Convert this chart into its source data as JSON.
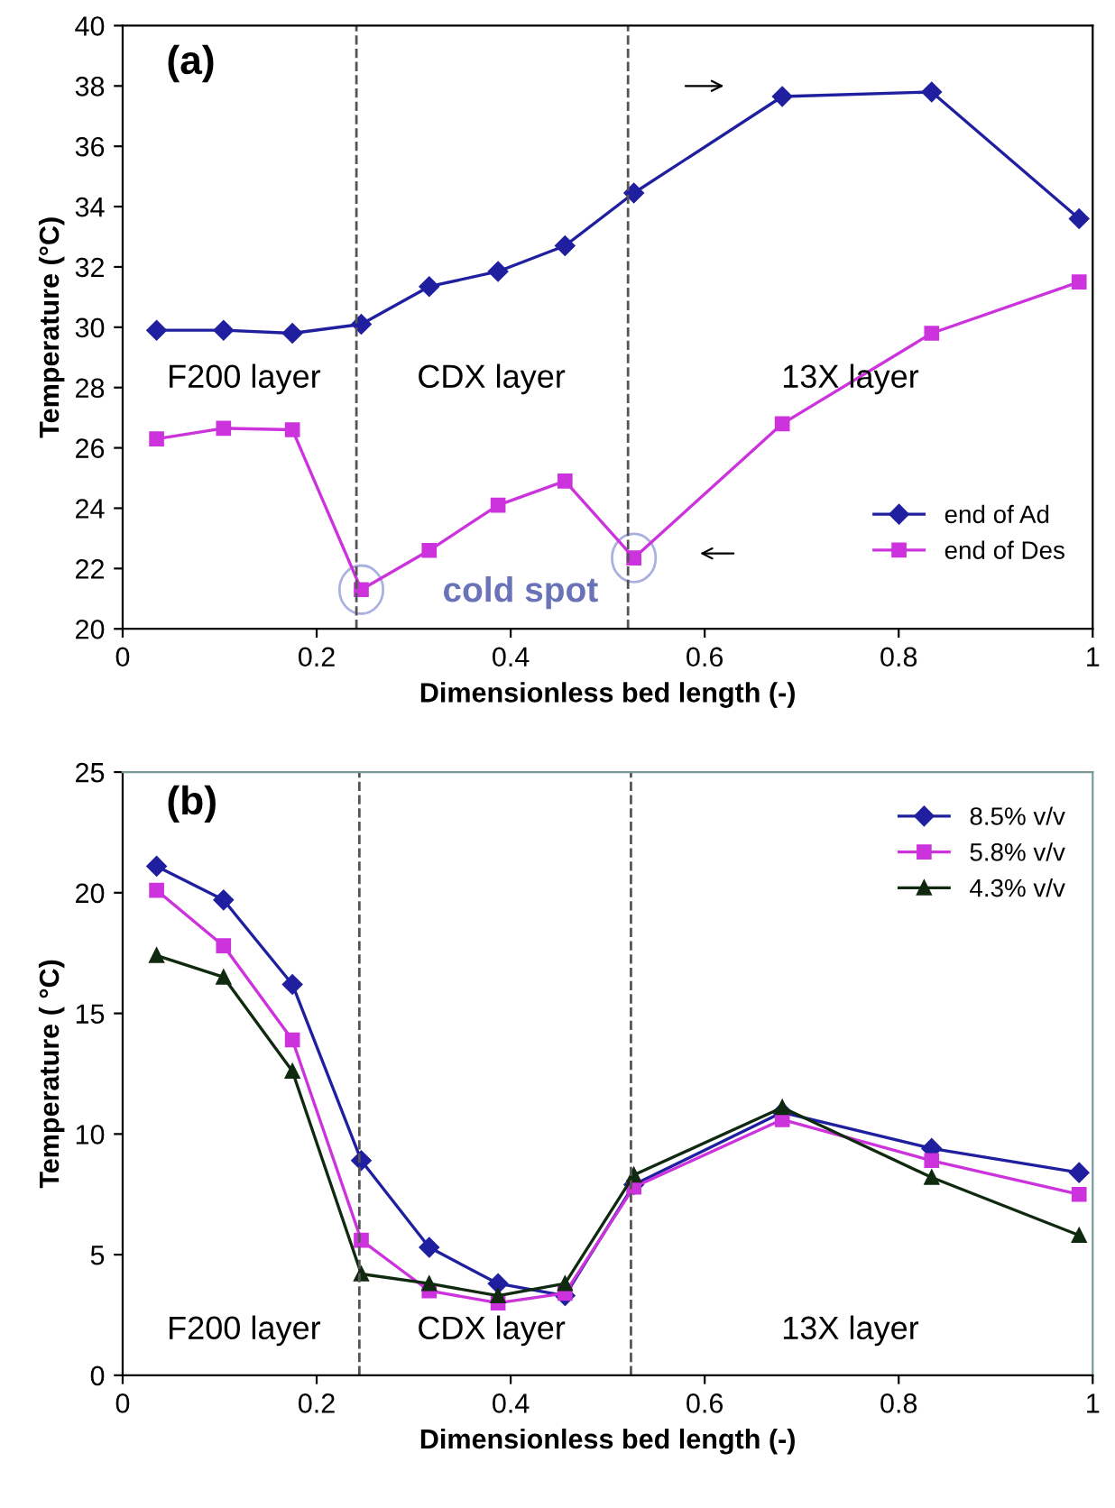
{
  "chart_data": [
    {
      "type": "line",
      "xlabel": "Dimensionless bed length (-)",
      "ylabel": "Temperature (°C)",
      "x": [
        0.035,
        0.104,
        0.175,
        0.246,
        0.316,
        0.387,
        0.456,
        0.527,
        0.68,
        0.834,
        0.986
      ],
      "series": [
        {
          "name": "end of Ad",
          "color": "#1f1f9f",
          "marker": "diamond",
          "values": [
            29.9,
            29.9,
            29.8,
            30.1,
            31.35,
            31.85,
            32.7,
            34.45,
            37.65,
            37.8,
            33.6
          ]
        },
        {
          "name": "end of Des",
          "color": "#cc33dd",
          "marker": "square",
          "values": [
            26.3,
            26.65,
            26.6,
            21.3,
            22.6,
            24.1,
            24.9,
            22.35,
            26.8,
            29.8,
            31.5
          ]
        }
      ],
      "xlim": [
        0,
        1
      ],
      "xticks": [
        0,
        0.2,
        0.4,
        0.6,
        0.8,
        1
      ],
      "ylim": [
        20,
        40
      ],
      "yticks": [
        20,
        22,
        24,
        26,
        28,
        30,
        32,
        34,
        36,
        38,
        40
      ],
      "ref_lines": [
        {
          "axis": "x",
          "value": 0.241,
          "color": "#555555",
          "line_style": "dashed"
        },
        {
          "axis": "x",
          "value": 0.521,
          "color": "#555555",
          "line_style": "dashed"
        }
      ],
      "annotations": [
        "(a)",
        "F200 layer",
        "CDX layer",
        "13X layer",
        "cold spot"
      ],
      "legend": "bottom right",
      "grid": false,
      "line_style": "solid"
    },
    {
      "type": "line",
      "xlabel": "Dimensionless bed length (-)",
      "ylabel": "Temperature ( °C)",
      "x": [
        0.035,
        0.104,
        0.175,
        0.246,
        0.316,
        0.387,
        0.456,
        0.527,
        0.68,
        0.834,
        0.986
      ],
      "series": [
        {
          "name": "8.5% v/v",
          "color": "#1f1f9f",
          "marker": "diamond",
          "values": [
            21.1,
            19.7,
            16.2,
            8.9,
            5.3,
            3.8,
            3.3,
            7.9,
            10.9,
            9.4,
            8.4
          ]
        },
        {
          "name": "5.8% v/v",
          "color": "#cc33dd",
          "marker": "square",
          "values": [
            20.1,
            17.8,
            13.9,
            5.6,
            3.5,
            3.0,
            3.4,
            7.8,
            10.6,
            8.9,
            7.5
          ]
        },
        {
          "name": "4.3% v/v",
          "color": "#102a10",
          "marker": "triangle",
          "values": [
            17.4,
            16.5,
            12.6,
            4.2,
            3.8,
            3.3,
            3.8,
            8.3,
            11.1,
            8.2,
            5.8
          ]
        }
      ],
      "xlim": [
        0,
        1
      ],
      "xticks": [
        0,
        0.2,
        0.4,
        0.6,
        0.8,
        1
      ],
      "ylim": [
        0,
        25
      ],
      "yticks": [
        0,
        5,
        10,
        15,
        20,
        25
      ],
      "ref_lines": [
        {
          "axis": "x",
          "value": 0.244,
          "color": "#555555",
          "line_style": "dashed"
        },
        {
          "axis": "x",
          "value": 0.524,
          "color": "#555555",
          "line_style": "dashed"
        }
      ],
      "annotations": [
        "(b)",
        "F200 layer",
        "CDX layer",
        "13X layer"
      ],
      "legend": "top right",
      "grid": false,
      "line_style": "solid"
    }
  ]
}
